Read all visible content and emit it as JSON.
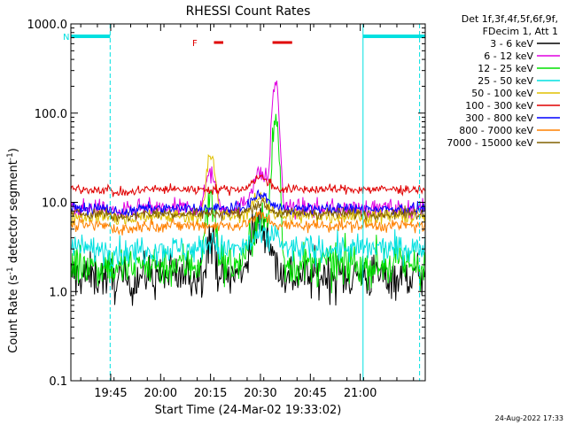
{
  "chart_data": {
    "type": "line",
    "title": "RHESSI Count Rates",
    "xlabel": "Start Time (24-Mar-02 19:33:02)",
    "ylabel_main": "Count Rate (s",
    "ylabel_sup1": "-1",
    "ylabel_mid": " detector segment",
    "ylabel_sup2": "-1",
    "ylabel_end": ")",
    "y_scale": "log",
    "ylim": [
      0.1,
      1000
    ],
    "xlim_minutes": [
      0,
      106.5
    ],
    "x_ticks": [
      {
        "label": "19:45",
        "min": 11.97
      },
      {
        "label": "20:00",
        "min": 26.97
      },
      {
        "label": "20:15",
        "min": 41.97
      },
      {
        "label": "20:30",
        "min": 56.97
      },
      {
        "label": "20:45",
        "min": 71.97
      },
      {
        "label": "21:00",
        "min": 86.97
      }
    ],
    "y_ticks": [
      {
        "label": "1000.0",
        "v": 1000
      },
      {
        "label": "100.0",
        "v": 100
      },
      {
        "label": "10.0",
        "v": 10
      },
      {
        "label": "1.0",
        "v": 1
      },
      {
        "label": "0.1",
        "v": 0.1
      }
    ],
    "legend_header": [
      "Det 1f,3f,4f,5f,6f,9f,",
      "FDecim 1, Att 1"
    ],
    "series": [
      {
        "name": "3 - 6 keV",
        "color": "#000000",
        "base": 1.5,
        "noise": 0.3,
        "hump": 6.0,
        "spike": 0,
        "f1": 3.0
      },
      {
        "name": "6 - 12 keV",
        "color": "#e000e0",
        "base": 8.5,
        "noise": 0.12,
        "hump": 3.5,
        "spike": 220,
        "f1": 18
      },
      {
        "name": "12 - 25 keV",
        "color": "#00e000",
        "base": 2.0,
        "noise": 0.28,
        "hump": 4.5,
        "spike": 85,
        "f1": 12
      },
      {
        "name": "25 - 50 keV",
        "color": "#00e0e0",
        "base": 3.0,
        "noise": 0.18,
        "hump": 1.6,
        "spike": 2.0,
        "f1": 1.0
      },
      {
        "name": "50 - 100 keV",
        "color": "#e0c000",
        "base": 7.0,
        "noise": 0.1,
        "hump": 2.0,
        "spike": 0,
        "f1": 30
      },
      {
        "name": "100 - 300 keV",
        "color": "#e00000",
        "base": 14.0,
        "noise": 0.06,
        "hump": 1.6,
        "spike": 0,
        "f1": 0
      },
      {
        "name": "300 - 800 keV",
        "color": "#0000ff",
        "base": 8.5,
        "noise": 0.07,
        "hump": 1.7,
        "spike": 0,
        "f1": 0
      },
      {
        "name": "800 - 7000 keV",
        "color": "#ff8000",
        "base": 5.5,
        "noise": 0.08,
        "hump": 1.5,
        "spike": 0,
        "f1": 0
      },
      {
        "name": "7000 - 15000 keV",
        "color": "#806000",
        "base": 7.5,
        "noise": 0.07,
        "hump": 1.5,
        "spike": 0,
        "f1": 0
      }
    ],
    "night_min": [
      [
        0,
        11.8
      ],
      [
        87.8,
        106.5
      ]
    ],
    "saa_min": [
      [
        87.8,
        106.5
      ]
    ],
    "flare_min": [
      [
        43,
        45.8
      ],
      [
        60.6,
        66.5
      ]
    ],
    "night_label": "N",
    "flare_label": "F",
    "timestamp": "24-Aug-2022 17:33"
  }
}
